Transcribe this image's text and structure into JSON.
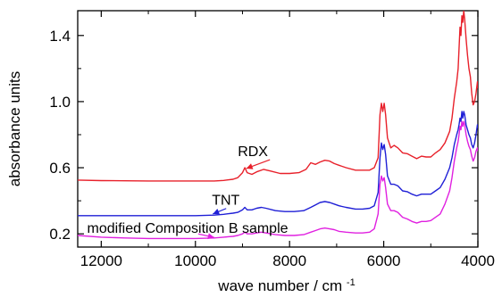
{
  "chart_data": {
    "type": "line",
    "xlabel": "wave number / cm",
    "xlabel_sup": "-1",
    "ylabel": "absorbance units",
    "xlim": [
      12500,
      4000
    ],
    "ylim": [
      0.12,
      1.55
    ],
    "x_ticks": [
      12000,
      10000,
      8000,
      6000,
      4000
    ],
    "y_ticks": [
      0.2,
      0.6,
      1.0,
      1.4
    ],
    "x_tick_labels": [
      "12000",
      "10000",
      "8000",
      "6000",
      "4000"
    ],
    "y_tick_labels": [
      "0.2",
      "0.6",
      "1.0",
      "1.4"
    ],
    "series": [
      {
        "name": "RDX",
        "color": "#e8202a",
        "points": [
          [
            12500,
            0.525
          ],
          [
            12000,
            0.522
          ],
          [
            11500,
            0.521
          ],
          [
            11000,
            0.52
          ],
          [
            10500,
            0.52
          ],
          [
            10000,
            0.52
          ],
          [
            9600,
            0.52
          ],
          [
            9400,
            0.523
          ],
          [
            9200,
            0.53
          ],
          [
            9100,
            0.54
          ],
          [
            9000,
            0.57
          ],
          [
            8950,
            0.6
          ],
          [
            8900,
            0.57
          ],
          [
            8800,
            0.56
          ],
          [
            8700,
            0.575
          ],
          [
            8550,
            0.59
          ],
          [
            8400,
            0.58
          ],
          [
            8200,
            0.565
          ],
          [
            8000,
            0.565
          ],
          [
            7800,
            0.57
          ],
          [
            7650,
            0.59
          ],
          [
            7550,
            0.63
          ],
          [
            7450,
            0.62
          ],
          [
            7350,
            0.635
          ],
          [
            7250,
            0.645
          ],
          [
            7150,
            0.64
          ],
          [
            7050,
            0.625
          ],
          [
            6950,
            0.615
          ],
          [
            6800,
            0.6
          ],
          [
            6600,
            0.585
          ],
          [
            6450,
            0.585
          ],
          [
            6300,
            0.585
          ],
          [
            6200,
            0.6
          ],
          [
            6120,
            0.66
          ],
          [
            6080,
            0.92
          ],
          [
            6050,
            0.99
          ],
          [
            6020,
            0.94
          ],
          [
            5990,
            0.99
          ],
          [
            5960,
            0.92
          ],
          [
            5920,
            0.78
          ],
          [
            5850,
            0.72
          ],
          [
            5780,
            0.735
          ],
          [
            5700,
            0.72
          ],
          [
            5600,
            0.69
          ],
          [
            5500,
            0.685
          ],
          [
            5400,
            0.67
          ],
          [
            5300,
            0.655
          ],
          [
            5200,
            0.67
          ],
          [
            5100,
            0.665
          ],
          [
            5000,
            0.665
          ],
          [
            4900,
            0.69
          ],
          [
            4800,
            0.71
          ],
          [
            4700,
            0.75
          ],
          [
            4600,
            0.82
          ],
          [
            4550,
            0.9
          ],
          [
            4500,
            1.02
          ],
          [
            4450,
            1.12
          ],
          [
            4420,
            1.2
          ],
          [
            4400,
            1.32
          ],
          [
            4380,
            1.45
          ],
          [
            4360,
            1.4
          ],
          [
            4340,
            1.52
          ],
          [
            4320,
            1.48
          ],
          [
            4300,
            1.55
          ],
          [
            4280,
            1.5
          ],
          [
            4250,
            1.38
          ],
          [
            4220,
            1.28
          ],
          [
            4190,
            1.2
          ],
          [
            4160,
            1.15
          ],
          [
            4130,
            1.05
          ],
          [
            4100,
            0.98
          ],
          [
            4070,
            1.0
          ],
          [
            4040,
            1.05
          ],
          [
            4010,
            1.12
          ],
          [
            4000,
            1.08
          ]
        ]
      },
      {
        "name": "TNT",
        "color": "#1f1fd6",
        "points": [
          [
            12500,
            0.31
          ],
          [
            12000,
            0.31
          ],
          [
            11500,
            0.31
          ],
          [
            11000,
            0.31
          ],
          [
            10500,
            0.31
          ],
          [
            10000,
            0.31
          ],
          [
            9600,
            0.313
          ],
          [
            9400,
            0.318
          ],
          [
            9200,
            0.325
          ],
          [
            9100,
            0.33
          ],
          [
            9000,
            0.345
          ],
          [
            8950,
            0.36
          ],
          [
            8900,
            0.345
          ],
          [
            8800,
            0.345
          ],
          [
            8700,
            0.355
          ],
          [
            8600,
            0.36
          ],
          [
            8500,
            0.355
          ],
          [
            8300,
            0.34
          ],
          [
            8100,
            0.335
          ],
          [
            7900,
            0.335
          ],
          [
            7700,
            0.34
          ],
          [
            7550,
            0.36
          ],
          [
            7450,
            0.375
          ],
          [
            7350,
            0.39
          ],
          [
            7250,
            0.395
          ],
          [
            7150,
            0.39
          ],
          [
            7050,
            0.38
          ],
          [
            6950,
            0.37
          ],
          [
            6800,
            0.36
          ],
          [
            6600,
            0.35
          ],
          [
            6450,
            0.35
          ],
          [
            6300,
            0.355
          ],
          [
            6200,
            0.37
          ],
          [
            6120,
            0.45
          ],
          [
            6080,
            0.66
          ],
          [
            6050,
            0.75
          ],
          [
            6020,
            0.71
          ],
          [
            5990,
            0.74
          ],
          [
            5960,
            0.68
          ],
          [
            5920,
            0.55
          ],
          [
            5850,
            0.5
          ],
          [
            5780,
            0.5
          ],
          [
            5700,
            0.49
          ],
          [
            5600,
            0.46
          ],
          [
            5500,
            0.455
          ],
          [
            5400,
            0.44
          ],
          [
            5300,
            0.43
          ],
          [
            5200,
            0.44
          ],
          [
            5100,
            0.44
          ],
          [
            5000,
            0.44
          ],
          [
            4900,
            0.46
          ],
          [
            4800,
            0.48
          ],
          [
            4700,
            0.53
          ],
          [
            4600,
            0.6
          ],
          [
            4550,
            0.66
          ],
          [
            4500,
            0.74
          ],
          [
            4450,
            0.8
          ],
          [
            4420,
            0.83
          ],
          [
            4400,
            0.86
          ],
          [
            4380,
            0.9
          ],
          [
            4360,
            0.88
          ],
          [
            4340,
            0.94
          ],
          [
            4320,
            0.9
          ],
          [
            4300,
            0.94
          ],
          [
            4280,
            0.92
          ],
          [
            4250,
            0.86
          ],
          [
            4220,
            0.83
          ],
          [
            4190,
            0.8
          ],
          [
            4160,
            0.78
          ],
          [
            4130,
            0.74
          ],
          [
            4100,
            0.72
          ],
          [
            4070,
            0.75
          ],
          [
            4040,
            0.8
          ],
          [
            4010,
            0.86
          ],
          [
            4000,
            0.84
          ]
        ]
      },
      {
        "name": "modified Composition B sample",
        "color": "#e020e0",
        "points": [
          [
            12500,
            0.19
          ],
          [
            12000,
            0.18
          ],
          [
            11500,
            0.175
          ],
          [
            11000,
            0.172
          ],
          [
            10500,
            0.172
          ],
          [
            10000,
            0.172
          ],
          [
            9600,
            0.175
          ],
          [
            9400,
            0.18
          ],
          [
            9200,
            0.185
          ],
          [
            9100,
            0.19
          ],
          [
            9000,
            0.2
          ],
          [
            8950,
            0.21
          ],
          [
            8900,
            0.2
          ],
          [
            8800,
            0.2
          ],
          [
            8700,
            0.205
          ],
          [
            8600,
            0.21
          ],
          [
            8500,
            0.205
          ],
          [
            8300,
            0.195
          ],
          [
            8100,
            0.19
          ],
          [
            7900,
            0.19
          ],
          [
            7700,
            0.195
          ],
          [
            7550,
            0.21
          ],
          [
            7450,
            0.22
          ],
          [
            7350,
            0.23
          ],
          [
            7250,
            0.235
          ],
          [
            7150,
            0.23
          ],
          [
            7050,
            0.225
          ],
          [
            6950,
            0.215
          ],
          [
            6800,
            0.21
          ],
          [
            6600,
            0.205
          ],
          [
            6450,
            0.205
          ],
          [
            6300,
            0.21
          ],
          [
            6200,
            0.23
          ],
          [
            6120,
            0.32
          ],
          [
            6080,
            0.5
          ],
          [
            6050,
            0.55
          ],
          [
            6020,
            0.52
          ],
          [
            5990,
            0.54
          ],
          [
            5960,
            0.48
          ],
          [
            5920,
            0.38
          ],
          [
            5850,
            0.34
          ],
          [
            5780,
            0.34
          ],
          [
            5700,
            0.33
          ],
          [
            5600,
            0.3
          ],
          [
            5500,
            0.29
          ],
          [
            5400,
            0.275
          ],
          [
            5300,
            0.265
          ],
          [
            5200,
            0.275
          ],
          [
            5100,
            0.275
          ],
          [
            5000,
            0.28
          ],
          [
            4900,
            0.3
          ],
          [
            4800,
            0.32
          ],
          [
            4700,
            0.38
          ],
          [
            4600,
            0.46
          ],
          [
            4550,
            0.54
          ],
          [
            4500,
            0.64
          ],
          [
            4450,
            0.72
          ],
          [
            4420,
            0.76
          ],
          [
            4400,
            0.8
          ],
          [
            4380,
            0.85
          ],
          [
            4360,
            0.83
          ],
          [
            4340,
            0.88
          ],
          [
            4320,
            0.85
          ],
          [
            4300,
            0.88
          ],
          [
            4280,
            0.86
          ],
          [
            4250,
            0.8
          ],
          [
            4220,
            0.76
          ],
          [
            4190,
            0.73
          ],
          [
            4160,
            0.71
          ],
          [
            4130,
            0.67
          ],
          [
            4100,
            0.64
          ],
          [
            4070,
            0.66
          ],
          [
            4040,
            0.7
          ],
          [
            4010,
            0.72
          ],
          [
            4000,
            0.7
          ]
        ]
      }
    ],
    "annotations": [
      {
        "text": "RDX",
        "series": 0,
        "color": "#000000",
        "arrow_color": "#e8202a",
        "label_at": [
          9100,
          0.67
        ],
        "arrow_to": [
          8920,
          0.595
        ]
      },
      {
        "text": "TNT",
        "series": 1,
        "color": "#000000",
        "arrow_color": "#1f1fd6",
        "label_at": [
          9650,
          0.375
        ],
        "arrow_to": [
          9630,
          0.32
        ]
      },
      {
        "text": "modified Composition B sample",
        "series": 2,
        "color": "#000000",
        "arrow_color": "#e020e0",
        "label_at": [
          12300,
          0.205
        ],
        "arrow_to": [
          9600,
          0.178
        ]
      }
    ]
  }
}
